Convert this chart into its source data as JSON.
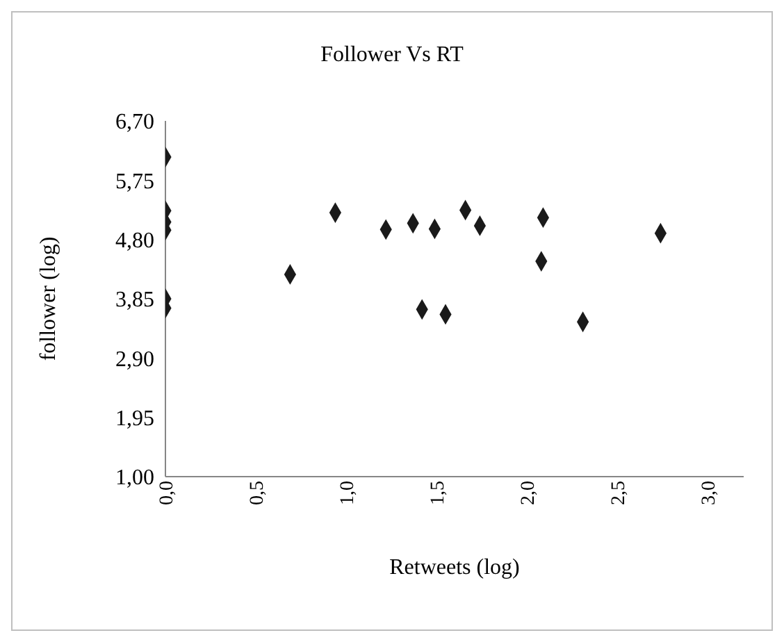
{
  "chart_data": {
    "type": "scatter",
    "title": "Follower Vs RT",
    "xlabel": "Retweets  (log)",
    "ylabel": "follower (log)",
    "x": [
      0,
      0,
      0,
      0,
      0,
      0,
      0.69,
      0.94,
      1.22,
      1.37,
      1.42,
      1.49,
      1.55,
      1.66,
      1.74,
      2.08,
      2.09,
      2.31,
      2.74
    ],
    "series": [
      {
        "color": "#1a1a1a",
        "values": [
          6.12,
          5.26,
          5.08,
          4.95,
          3.85,
          3.7,
          4.24,
          5.23,
          4.96,
          5.06,
          3.68,
          4.97,
          3.6,
          5.27,
          5.02,
          4.45,
          5.15,
          3.48,
          4.9
        ]
      }
    ],
    "xlim": [
      0,
      3.2
    ],
    "xticks": [
      {
        "value": 0,
        "label": "0,0"
      },
      {
        "value": 0.5,
        "label": "0,5"
      },
      {
        "value": 1,
        "label": "1,0"
      },
      {
        "value": 1.5,
        "label": "1,5"
      },
      {
        "value": 2,
        "label": "2,0"
      },
      {
        "value": 2.5,
        "label": "2,5"
      },
      {
        "value": 3,
        "label": "3,0"
      }
    ],
    "ylim": [
      1,
      6.7
    ],
    "yticks": [
      {
        "value": 1,
        "label": "1,00"
      },
      {
        "value": 1.95,
        "label": "1,95"
      },
      {
        "value": 2.9,
        "label": "2,90"
      },
      {
        "value": 3.85,
        "label": "3,85"
      },
      {
        "value": 4.8,
        "label": "4,80"
      },
      {
        "value": 5.75,
        "label": "5,75"
      },
      {
        "value": 6.7,
        "label": "6,70"
      }
    ],
    "grid": false,
    "legend": false,
    "marker": "diamond"
  }
}
